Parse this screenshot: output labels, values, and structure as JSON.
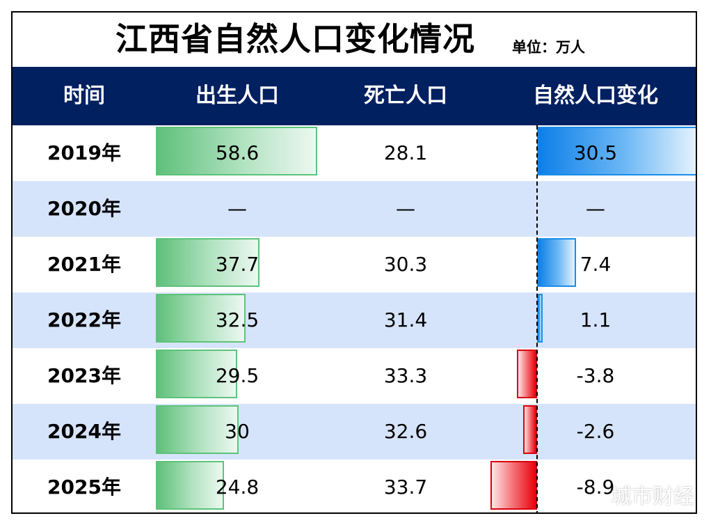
{
  "title": "江西省自然人口变化情况",
  "unit": "单位：万人",
  "watermark": "城市财经",
  "columns": [
    "时间",
    "出生人口",
    "死亡人口",
    "自然人口变化"
  ],
  "colors": {
    "header_bg": "#002060",
    "alt_row_bg": "#d6e4fb",
    "birth_bar": "#5fc07a",
    "positive_change_bar": "#0d7fe8",
    "negative_change_bar": "#e8000a"
  },
  "chart_data": {
    "type": "table",
    "rows": [
      {
        "year": "2019年",
        "births": "58.6",
        "deaths": "28.1",
        "change": "30.5",
        "births_value": 58.6,
        "change_value": 30.5
      },
      {
        "year": "2020年",
        "births": "—",
        "deaths": "—",
        "change": "—",
        "births_value": null,
        "change_value": null
      },
      {
        "year": "2021年",
        "births": "37.7",
        "deaths": "30.3",
        "change": "7.4",
        "births_value": 37.7,
        "change_value": 7.4
      },
      {
        "year": "2022年",
        "births": "32.5",
        "deaths": "31.4",
        "change": "1.1",
        "births_value": 32.5,
        "change_value": 1.1
      },
      {
        "year": "2023年",
        "births": "29.5",
        "deaths": "33.3",
        "change": "-3.8",
        "births_value": 29.5,
        "change_value": -3.8
      },
      {
        "year": "2024年",
        "births": "30",
        "deaths": "32.6",
        "change": "-2.6",
        "births_value": 30,
        "change_value": -2.6
      },
      {
        "year": "2025年",
        "births": "24.8",
        "deaths": "33.7",
        "change": "-8.9",
        "births_value": 24.8,
        "change_value": -8.9
      }
    ]
  }
}
